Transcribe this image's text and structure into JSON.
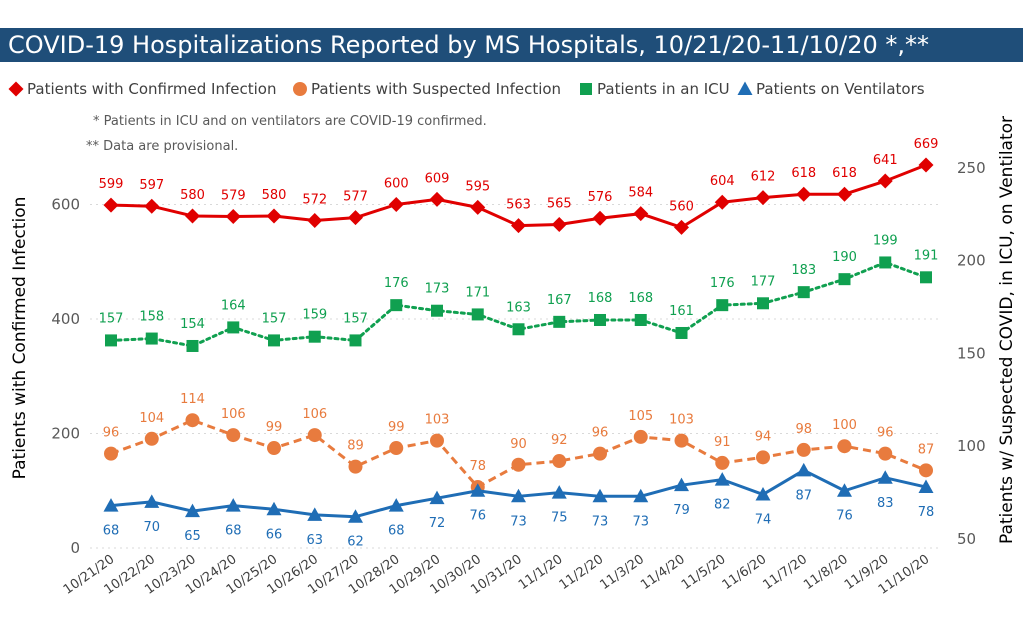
{
  "title": "COVID-19 Hospitalizations Reported by MS Hospitals, 10/21/20-11/10/20 *,**",
  "notes": [
    "* Patients in ICU and on ventilators are COVID-19 confirmed.",
    "** Data are provisional."
  ],
  "colors": {
    "confirmed": "#e00000",
    "suspected": "#e87b3e",
    "icu": "#10a050",
    "ventilator": "#1f6db5",
    "title_bar": "#1f4e79"
  },
  "chart_data": {
    "type": "line",
    "categories": [
      "10/21/20",
      "10/22/20",
      "10/23/20",
      "10/24/20",
      "10/25/20",
      "10/26/20",
      "10/27/20",
      "10/28/20",
      "10/29/20",
      "10/30/20",
      "10/31/20",
      "11/1/20",
      "11/2/20",
      "11/3/20",
      "11/4/20",
      "11/5/20",
      "11/6/20",
      "11/7/20",
      "11/8/20",
      "11/9/20",
      "11/10/20"
    ],
    "ylabel": "Patients with Confirmed Infection",
    "y2label": "Patients w/ Suspected COVID, in ICU, on Ventilator",
    "ylim": [
      0,
      700
    ],
    "y2lim": [
      50,
      265
    ],
    "yticks": [
      0,
      200,
      400,
      600
    ],
    "y2ticks": [
      50,
      100,
      150,
      200,
      250
    ],
    "grid": true,
    "legend_position": "top",
    "series": [
      {
        "key": "confirmed",
        "name": "Patients with Confirmed Infection",
        "axis": "left",
        "marker": "diamond",
        "line": "solid",
        "values": [
          599,
          597,
          580,
          579,
          580,
          572,
          577,
          600,
          609,
          595,
          563,
          565,
          576,
          584,
          560,
          604,
          612,
          618,
          618,
          641,
          669
        ]
      },
      {
        "key": "suspected",
        "name": "Patients with Suspected Infection",
        "axis": "right",
        "marker": "circle",
        "line": "dashed",
        "values": [
          96,
          104,
          114,
          106,
          99,
          106,
          89,
          99,
          103,
          78,
          90,
          92,
          96,
          105,
          103,
          91,
          94,
          98,
          100,
          96,
          87
        ]
      },
      {
        "key": "icu",
        "name": "Patients in an ICU",
        "axis": "right",
        "marker": "square",
        "line": "dotted",
        "values": [
          157,
          158,
          154,
          164,
          157,
          159,
          157,
          176,
          173,
          171,
          163,
          167,
          168,
          168,
          161,
          176,
          177,
          183,
          190,
          199,
          191
        ]
      },
      {
        "key": "ventilator",
        "name": "Patients on Ventilators",
        "axis": "right",
        "marker": "triangle",
        "line": "solid",
        "values": [
          68,
          70,
          65,
          68,
          66,
          63,
          62,
          68,
          72,
          76,
          73,
          75,
          73,
          73,
          79,
          82,
          74,
          87,
          76,
          83,
          78
        ]
      }
    ]
  }
}
